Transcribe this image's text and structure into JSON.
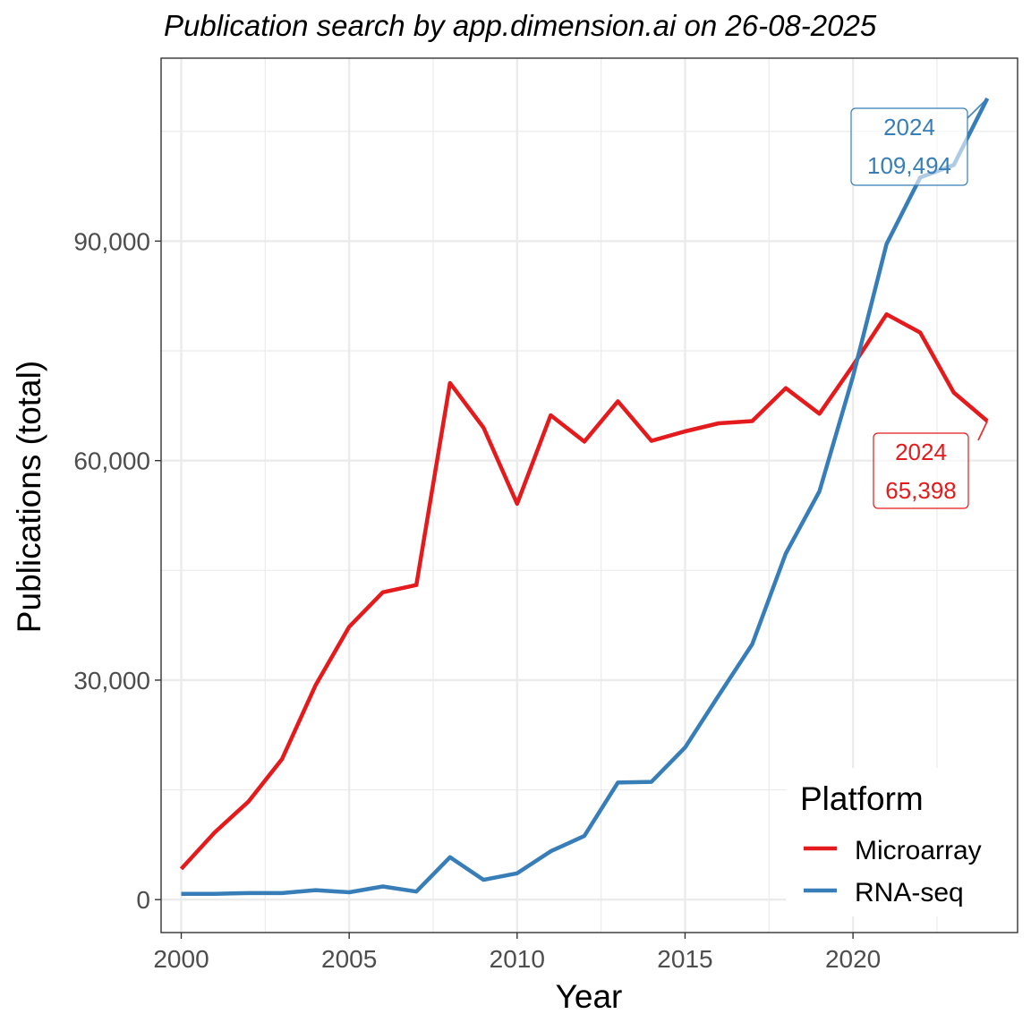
{
  "chart_data": {
    "type": "line",
    "title": "Publication search by app.dimension.ai on 26-08-2025",
    "xlabel": "Year",
    "ylabel": "Publications (total)",
    "xlim": [
      1999.4,
      2024.9
    ],
    "ylim": [
      -4500,
      115000
    ],
    "x_ticks": [
      2000,
      2005,
      2010,
      2015,
      2020
    ],
    "x_tick_labels": [
      "2000",
      "2005",
      "2010",
      "2015",
      "2020"
    ],
    "x_minor_ticks": [
      2002.5,
      2007.5,
      2012.5,
      2017.5,
      2022.5
    ],
    "y_ticks": [
      0,
      30000,
      60000,
      90000
    ],
    "y_tick_labels": [
      "0",
      "30,000",
      "60,000",
      "90,000"
    ],
    "y_minor_ticks": [
      15000,
      45000,
      75000,
      105000
    ],
    "grid": true,
    "x": [
      2000,
      2001,
      2002,
      2003,
      2004,
      2005,
      2006,
      2007,
      2008,
      2009,
      2010,
      2011,
      2012,
      2013,
      2014,
      2015,
      2016,
      2017,
      2018,
      2019,
      2020,
      2021,
      2022,
      2023,
      2024
    ],
    "series": [
      {
        "name": "Microarray",
        "color": "#e41a1c",
        "values": [
          4200,
          9200,
          13400,
          19200,
          29300,
          37300,
          42000,
          43000,
          70600,
          64500,
          54100,
          66200,
          62600,
          68100,
          62700,
          64000,
          65100,
          65400,
          69900,
          66400,
          73000,
          80000,
          77500,
          69300,
          65398
        ]
      },
      {
        "name": "RNA-seq",
        "color": "#377eb8",
        "values": [
          800,
          800,
          900,
          900,
          1300,
          1000,
          1800,
          1100,
          5800,
          2700,
          3600,
          6600,
          8700,
          16000,
          16100,
          20800,
          27900,
          34900,
          47300,
          55800,
          71500,
          89600,
          98700,
          100400,
          109494
        ]
      }
    ],
    "legend": {
      "title": "Platform",
      "position": "bottom-right inside",
      "entries": [
        "Microarray",
        "RNA-seq"
      ]
    },
    "annotations": [
      {
        "series": "RNA-seq",
        "year_label": "2024",
        "value_label": "109,494",
        "x": 2024,
        "y": 109494,
        "color": "#377eb8"
      },
      {
        "series": "Microarray",
        "year_label": "2024",
        "value_label": "65,398",
        "x": 2024,
        "y": 65398,
        "color": "#e41a1c"
      }
    ]
  }
}
